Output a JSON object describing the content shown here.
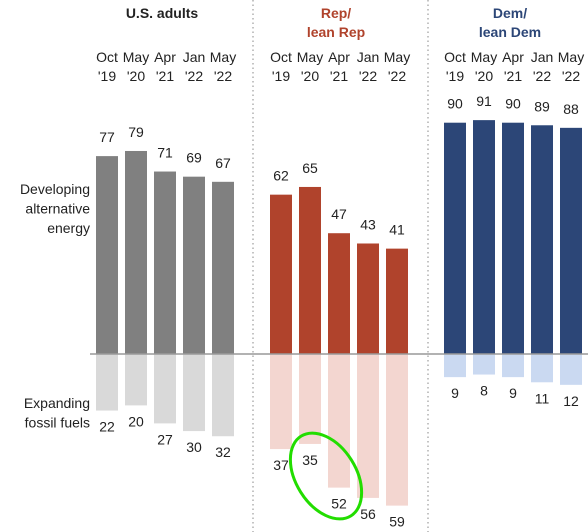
{
  "row_labels": [
    "Developing\nalternative\nenergy",
    "Expanding\nfossil fuels"
  ],
  "chart_data": [
    {
      "type": "bar",
      "title": "U.S. adults",
      "categories": [
        "Oct\n'19",
        "May\n'20",
        "Apr\n'21",
        "Jan\n'22",
        "May\n'22"
      ],
      "series": [
        {
          "color": "#808080",
          "values": [
            77,
            79,
            71,
            69,
            67
          ]
        },
        {
          "color": "#d9d9d9",
          "values": [
            22,
            20,
            27,
            30,
            32
          ]
        }
      ]
    },
    {
      "type": "bar",
      "title": "Rep/\nlean Rep",
      "categories": [
        "Oct\n'19",
        "May\n'20",
        "Apr\n'21",
        "Jan\n'22",
        "May\n'22"
      ],
      "series": [
        {
          "color": "#b0432c",
          "values": [
            62,
            65,
            47,
            43,
            41
          ]
        },
        {
          "color": "#f3d6d0",
          "values": [
            37,
            35,
            52,
            56,
            59
          ]
        }
      ]
    },
    {
      "type": "bar",
      "title": "Dem/\nlean Dem",
      "categories": [
        "Oct\n'19",
        "May\n'20",
        "Apr\n'21",
        "Jan\n'22",
        "May\n'22"
      ],
      "series": [
        {
          "color": "#2c4677",
          "values": [
            90,
            91,
            90,
            89,
            88
          ]
        },
        {
          "color": "#cad9f1",
          "values": [
            9,
            8,
            9,
            11,
            12
          ]
        }
      ]
    }
  ]
}
